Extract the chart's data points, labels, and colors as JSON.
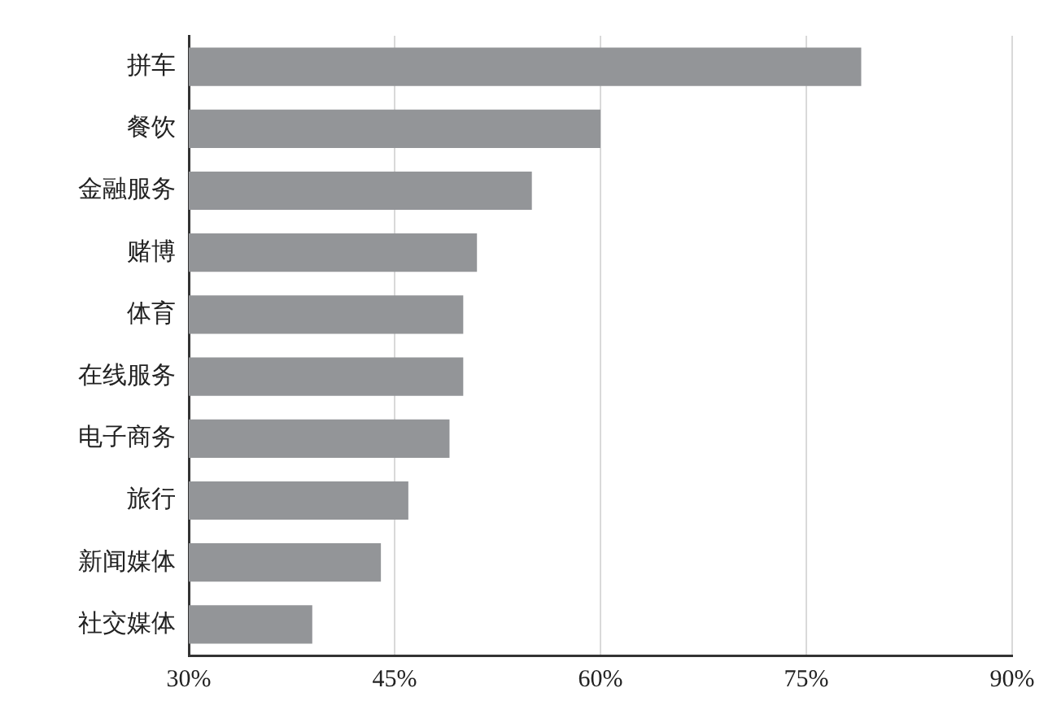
{
  "chart_data": {
    "type": "bar",
    "orientation": "horizontal",
    "categories": [
      "拼车",
      "餐饮",
      "金融服务",
      "赌博",
      "体育",
      "在线服务",
      "电子商务",
      "旅行",
      "新闻媒体",
      "社交媒体"
    ],
    "values": [
      79,
      60,
      55,
      51,
      50,
      50,
      49,
      46,
      44,
      39
    ],
    "color": "#939598",
    "xlim": [
      30,
      90
    ],
    "xticks": [
      {
        "value": 30,
        "label": "30%"
      },
      {
        "value": 45,
        "label": "45%"
      },
      {
        "value": 60,
        "label": "60%"
      },
      {
        "value": 75,
        "label": "75%"
      },
      {
        "value": 90,
        "label": "90%"
      }
    ],
    "grid": "x",
    "legend": false
  }
}
